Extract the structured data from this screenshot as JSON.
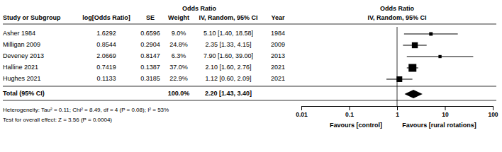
{
  "chart_data": {
    "type": "forest",
    "table_title": "Odds Ratio",
    "title": "Odds Ratio",
    "subtitle": "IV, Random, 95% CI",
    "columns": [
      "Study or Subgroup",
      "log[Odds Ratio]",
      "SE",
      "Weight",
      "IV, Random, 95% CI",
      "Year"
    ],
    "categories": [
      "Asher 1984",
      "Milligan 2009",
      "Deveney 2013",
      "Halline 2021",
      "Hughes 2021"
    ],
    "log_or": [
      1.6292,
      0.8544,
      2.0669,
      0.7419,
      0.1133
    ],
    "se": [
      0.6596,
      0.2904,
      0.8147,
      0.1387,
      0.3185
    ],
    "weight": [
      9.0,
      24.8,
      6.3,
      37.0,
      22.9
    ],
    "weight_labels": [
      "9.0%",
      "24.8%",
      "6.3%",
      "37.0%",
      "22.9%"
    ],
    "values": [
      5.1,
      2.35,
      7.9,
      2.1,
      1.12
    ],
    "ci_low": [
      1.4,
      1.33,
      1.6,
      1.6,
      0.6
    ],
    "ci_high": [
      18.58,
      4.15,
      39.0,
      2.76,
      2.09
    ],
    "value_labels": [
      "5.10 [1.40, 18.58]",
      "2.35 [1.33, 4.15]",
      "7.90 [1.60, 39.00]",
      "2.10 [1.60, 2.76]",
      "1.12 [0.60, 2.09]"
    ],
    "year": [
      "1984",
      "2009",
      "2013",
      "2021",
      "2021"
    ],
    "total": {
      "label": "Total (95% CI)",
      "weight_label": "100.0%",
      "value": 2.2,
      "ci_low": 1.43,
      "ci_high": 3.4,
      "value_label": "2.20 [1.43, 3.40]"
    },
    "reference": 1,
    "annotations": [
      "Favours [control]",
      "Favours [rural rotations]"
    ],
    "notes": [
      "Heterogeneity: Tau² = 0.11; Chi² = 8.49, df = 4 (P = 0.08); I² = 53%",
      "Test for overall effect: Z = 3.56 (P = 0.0004)"
    ],
    "log": "x",
    "xlim": [
      0.01,
      100
    ],
    "xticks": [
      0.01,
      0.1,
      1,
      10,
      100
    ],
    "color": "#000000"
  }
}
